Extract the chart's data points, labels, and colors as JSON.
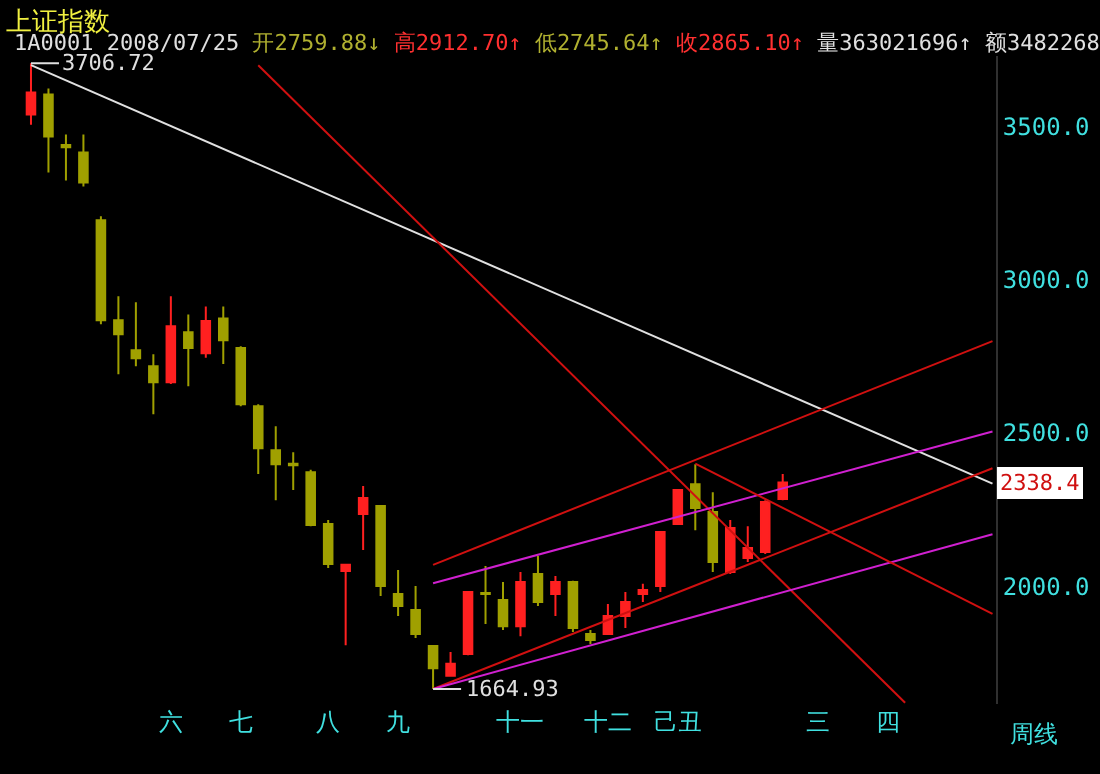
{
  "chart_data": {
    "type": "candlestick",
    "title": "上证指数",
    "annotations": [
      "1A0001 2008/07/25",
      "开2759.88↓",
      "高2912.70↑",
      "低2745.64↑",
      "收2865.10↑",
      "量363021696↑",
      "额3482268",
      "周线",
      "2338.4",
      "3706.72",
      "1664.93"
    ],
    "categories": [
      null,
      null,
      null,
      null,
      null,
      null,
      null,
      null,
      "六",
      null,
      null,
      null,
      "七",
      null,
      null,
      null,
      null,
      "八",
      null,
      null,
      null,
      "九",
      null,
      null,
      null,
      null,
      null,
      null,
      "十一",
      null,
      null,
      null,
      null,
      "十二",
      null,
      null,
      null,
      "己丑",
      null,
      null,
      null,
      null,
      null,
      null,
      null,
      "三",
      null,
      null,
      null,
      "四",
      null,
      null,
      null,
      null,
      null,
      null
    ],
    "ohlc": [
      [
        3539,
        3706.72,
        3506,
        3611
      ],
      [
        3604,
        3624,
        3350,
        3467
      ],
      [
        3440,
        3474,
        3324,
        3432
      ],
      [
        3415,
        3474,
        3304,
        3317
      ],
      [
        3194,
        3207,
        2855,
        2868
      ],
      [
        2868,
        2946,
        2692,
        2822
      ],
      [
        2770,
        2927,
        2718,
        2744
      ],
      [
        2718,
        2757,
        2561,
        2666
      ],
      [
        2666,
        2946,
        2660,
        2848
      ],
      [
        2829,
        2887,
        2653,
        2777
      ],
      [
        2759.88,
        2912.7,
        2745.64,
        2865.1
      ],
      [
        2874,
        2913,
        2725,
        2803
      ],
      [
        2777,
        2783,
        2587,
        2594
      ],
      [
        2587,
        2594,
        2366,
        2450
      ],
      [
        2444,
        2522,
        2281,
        2398
      ],
      [
        2400,
        2437,
        2314,
        2395
      ],
      [
        2372,
        2380,
        2196,
        2200
      ],
      [
        2203,
        2216,
        2060,
        2073
      ],
      [
        2050,
        2073,
        1808,
        2070
      ],
      [
        2236,
        2327,
        2118,
        2288
      ],
      [
        2262,
        2262,
        1968,
        2001
      ],
      [
        1975,
        2053,
        1903,
        1936
      ],
      [
        1923,
        2001,
        1831,
        1844
      ],
      [
        1805,
        1805,
        1664.93,
        1733
      ],
      [
        1708,
        1786,
        1708,
        1747
      ],
      [
        1779,
        1985,
        1775,
        1981
      ],
      [
        1978,
        2066,
        1877,
        1975
      ],
      [
        1955,
        2014,
        1857,
        1870
      ],
      [
        1870,
        2047,
        1837,
        2014
      ],
      [
        2040,
        2099,
        1936,
        1949
      ],
      [
        1975,
        2034,
        1903,
        2014
      ],
      [
        2014,
        2018,
        1851,
        1864
      ],
      [
        1844,
        1857,
        1812,
        1825
      ],
      [
        1844,
        1942,
        1844,
        1903
      ],
      [
        1903,
        1981,
        1864,
        1949
      ],
      [
        1975,
        2008,
        1949,
        1988
      ],
      [
        2001,
        2177,
        1981,
        2177
      ],
      [
        2203,
        2314,
        2203,
        2314
      ],
      [
        2333,
        2398,
        2183,
        2255
      ],
      [
        2242,
        2307,
        2047,
        2079
      ],
      [
        2047,
        2216,
        2040,
        2190
      ],
      [
        2092,
        2196,
        2079,
        2125
      ],
      [
        2112,
        2281,
        2105,
        2275
      ],
      [
        2285,
        2366,
        2281,
        2338.4
      ],
      null,
      null,
      null,
      null,
      null,
      null,
      null,
      null,
      null,
      null,
      null,
      null
    ],
    "series": [
      {
        "type": "line",
        "color": "#e0e0e0",
        "values": [
          3700,
          null,
          null,
          null,
          null,
          null,
          null,
          null,
          null,
          null,
          null,
          null,
          null,
          null,
          null,
          null,
          null,
          null,
          null,
          null,
          null,
          null,
          null,
          null,
          null,
          null,
          null,
          null,
          null,
          null,
          null,
          null,
          null,
          null,
          null,
          null,
          null,
          null,
          null,
          null,
          null,
          null,
          null,
          null,
          null,
          null,
          null,
          null,
          null,
          null,
          null,
          null,
          null,
          null,
          null,
          2335
        ]
      },
      {
        "type": "line",
        "color": "#d01010",
        "values": [
          null,
          null,
          null,
          null,
          null,
          null,
          null,
          null,
          null,
          null,
          null,
          null,
          null,
          3700,
          null,
          null,
          null,
          null,
          null,
          null,
          null,
          null,
          null,
          null,
          null,
          null,
          null,
          null,
          null,
          null,
          null,
          null,
          null,
          null,
          null,
          null,
          null,
          null,
          null,
          null,
          null,
          null,
          null,
          null,
          null,
          null,
          null,
          null,
          null,
          null,
          1620,
          null,
          null,
          null,
          null,
          null
        ]
      },
      {
        "type": "line",
        "color": "#d01010",
        "values": [
          null,
          null,
          null,
          null,
          null,
          null,
          null,
          null,
          null,
          null,
          null,
          null,
          null,
          null,
          null,
          null,
          null,
          null,
          null,
          null,
          null,
          null,
          null,
          2070,
          null,
          null,
          null,
          null,
          null,
          null,
          null,
          null,
          null,
          null,
          null,
          null,
          null,
          null,
          null,
          null,
          null,
          null,
          null,
          null,
          null,
          null,
          null,
          null,
          null,
          null,
          null,
          null,
          null,
          null,
          null,
          2800
        ]
      },
      {
        "type": "line",
        "color": "#d020d0",
        "values": [
          null,
          null,
          null,
          null,
          null,
          null,
          null,
          null,
          null,
          null,
          null,
          null,
          null,
          null,
          null,
          null,
          null,
          null,
          null,
          null,
          null,
          null,
          null,
          2010,
          null,
          null,
          null,
          null,
          null,
          null,
          null,
          null,
          null,
          null,
          null,
          null,
          null,
          null,
          null,
          null,
          null,
          null,
          null,
          null,
          null,
          null,
          null,
          null,
          null,
          null,
          null,
          null,
          null,
          null,
          null,
          2505
        ]
      },
      {
        "type": "line",
        "color": "#d01010",
        "values": [
          null,
          null,
          null,
          null,
          null,
          null,
          null,
          null,
          null,
          null,
          null,
          null,
          null,
          null,
          null,
          null,
          null,
          null,
          null,
          null,
          null,
          null,
          null,
          1665,
          null,
          null,
          null,
          null,
          null,
          null,
          null,
          null,
          null,
          null,
          null,
          null,
          null,
          null,
          null,
          null,
          null,
          null,
          null,
          null,
          null,
          null,
          null,
          null,
          null,
          null,
          null,
          null,
          null,
          null,
          null,
          2385
        ]
      },
      {
        "type": "line",
        "color": "#d020d0",
        "values": [
          null,
          null,
          null,
          null,
          null,
          null,
          null,
          null,
          null,
          null,
          null,
          null,
          null,
          null,
          null,
          null,
          null,
          null,
          null,
          null,
          null,
          null,
          null,
          1665,
          null,
          null,
          null,
          null,
          null,
          null,
          null,
          null,
          null,
          null,
          null,
          null,
          null,
          null,
          null,
          null,
          null,
          null,
          null,
          null,
          null,
          null,
          null,
          null,
          null,
          null,
          null,
          null,
          null,
          null,
          null,
          2170
        ]
      },
      {
        "type": "line",
        "color": "#d01010",
        "values": [
          null,
          null,
          null,
          null,
          null,
          null,
          null,
          null,
          null,
          null,
          null,
          null,
          null,
          null,
          null,
          null,
          null,
          null,
          null,
          null,
          null,
          null,
          null,
          null,
          null,
          null,
          null,
          null,
          null,
          null,
          null,
          null,
          null,
          null,
          null,
          null,
          null,
          null,
          2400,
          null,
          null,
          null,
          null,
          null,
          null,
          null,
          null,
          null,
          null,
          null,
          null,
          null,
          null,
          null,
          null,
          1910
        ]
      }
    ],
    "yticks": [
      {
        "value": 2000,
        "label": "2000.0"
      },
      {
        "value": 2500,
        "label": "2500.0"
      },
      {
        "value": 3000,
        "label": "3000.0"
      },
      {
        "value": 3500,
        "label": "3500.0"
      }
    ],
    "ylim": [
      1616,
      3730
    ],
    "grid": false
  }
}
